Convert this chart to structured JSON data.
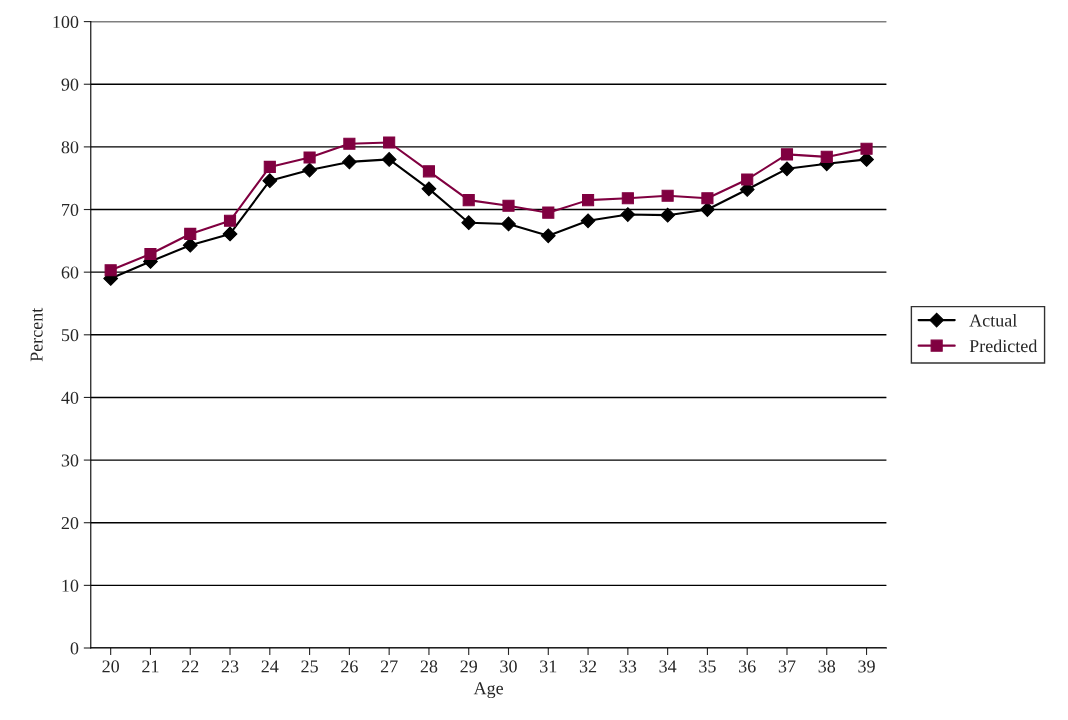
{
  "chart_data": {
    "type": "line",
    "xlabel": "Age",
    "ylabel": "Percent",
    "categories": [
      "20",
      "21",
      "22",
      "23",
      "24",
      "25",
      "26",
      "27",
      "28",
      "29",
      "30",
      "31",
      "32",
      "33",
      "34",
      "35",
      "36",
      "37",
      "38",
      "39"
    ],
    "series": [
      {
        "name": "Actual",
        "color": "#000000",
        "marker": "diamond",
        "values": [
          59,
          61.7,
          64.3,
          66.1,
          74.6,
          76.3,
          77.6,
          78,
          73.3,
          67.9,
          67.7,
          65.8,
          68.2,
          69.2,
          69.1,
          70,
          73.2,
          76.5,
          77.3,
          78
        ]
      },
      {
        "name": "Predicted",
        "color": "#800040",
        "marker": "square",
        "values": [
          60.3,
          62.9,
          66.1,
          68.2,
          76.8,
          78.3,
          80.5,
          80.7,
          76.1,
          71.5,
          70.6,
          69.5,
          71.5,
          71.8,
          72.2,
          71.8,
          74.8,
          78.8,
          78.4,
          79.7
        ]
      }
    ],
    "ylim": [
      0,
      100
    ],
    "yticks": [
      0,
      10,
      20,
      30,
      40,
      50,
      60,
      70,
      80,
      90,
      100
    ],
    "grid": "y",
    "legend": "right",
    "line_style": "solid"
  }
}
